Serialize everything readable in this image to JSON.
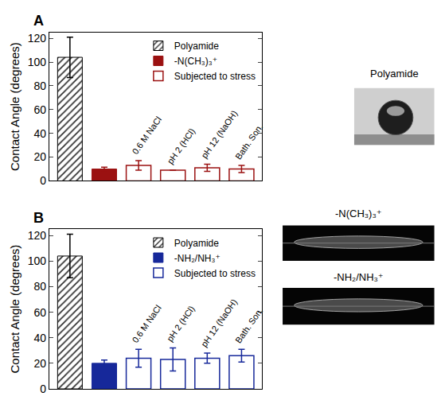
{
  "chart_data": [
    {
      "type": "bar",
      "title": "A",
      "y_label": "Contact Angle (degrees)",
      "categories": [
        null,
        null,
        "0.6 M NaCl",
        "pH 2 (HCl)",
        "pH 12 (NaOH)",
        "Bath. Son."
      ],
      "series": [
        {
          "name": "Polyamide",
          "color": "#333333",
          "marker": "hatch",
          "values": [
            104,
            null,
            null,
            null,
            null,
            null
          ],
          "errors": [
            17,
            null,
            null,
            null,
            null,
            null
          ]
        },
        {
          "name": "-N(CH₃)₃⁺",
          "color": "#9b1111",
          "marker": "filled",
          "values": [
            null,
            10,
            null,
            null,
            null,
            null
          ],
          "errors": [
            null,
            1.5,
            null,
            null,
            null,
            null
          ]
        },
        {
          "name": "Subjected to stress",
          "color": "#9b1111",
          "marker": "open",
          "values": [
            null,
            null,
            13,
            9,
            11,
            10
          ],
          "errors": [
            null,
            null,
            4,
            0,
            3,
            3
          ]
        }
      ],
      "ylim": [
        0,
        125
      ],
      "yticks": [
        0,
        20,
        40,
        60,
        80,
        100,
        120
      ],
      "legend": "upper right",
      "grid": false,
      "tick_labels": "y"
    },
    {
      "type": "bar",
      "title": "B",
      "y_label": "Contact Angle (degrees)",
      "categories": [
        null,
        null,
        "0.6 M NaCl",
        "pH 2 (HCl)",
        "pH 12 (NaOH)",
        "Bath. Son."
      ],
      "series": [
        {
          "name": "Polyamide",
          "color": "#333333",
          "marker": "hatch",
          "values": [
            104,
            null,
            null,
            null,
            null,
            null
          ],
          "errors": [
            17,
            null,
            null,
            null,
            null,
            null
          ]
        },
        {
          "name": "-NH₂/NH₃⁺",
          "color": "#16289a",
          "marker": "filled",
          "values": [
            null,
            20,
            null,
            null,
            null,
            null
          ],
          "errors": [
            null,
            2.5,
            null,
            null,
            null,
            null
          ]
        },
        {
          "name": "Subjected to stress",
          "color": "#16289a",
          "marker": "open",
          "values": [
            null,
            null,
            24,
            23,
            24,
            26
          ],
          "errors": [
            null,
            null,
            7,
            9,
            4,
            5
          ]
        }
      ],
      "ylim": [
        0,
        125
      ],
      "yticks": [
        0,
        20,
        40,
        60,
        80,
        100,
        120
      ],
      "legend": "upper right",
      "grid": false,
      "tick_labels": "y"
    }
  ],
  "photo_labels": [
    "Polyamide",
    "-N(CH₃)₃⁺",
    "-NH₂/NH₃⁺"
  ]
}
